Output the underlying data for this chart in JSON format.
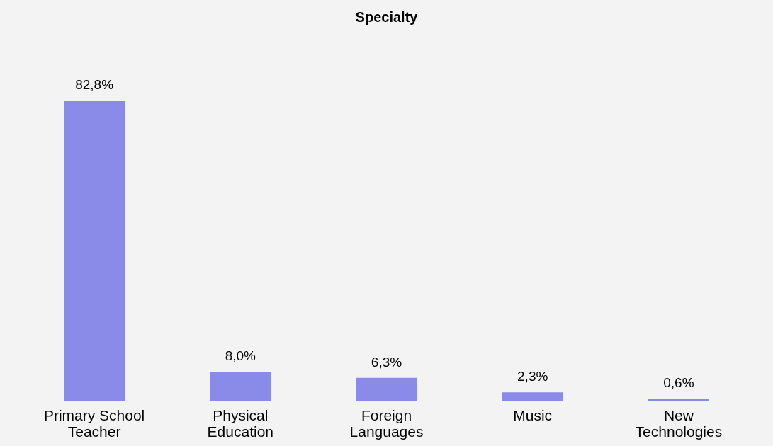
{
  "chart_data": {
    "type": "bar",
    "title": "Specialty",
    "categories": [
      "Primary School Teacher",
      "Physical Education",
      "Foreign Languages",
      "Music",
      "New Technologies"
    ],
    "values": [
      82.8,
      8.0,
      6.3,
      2.3,
      0.6
    ],
    "value_labels": [
      "82,8%",
      "8,0%",
      "6,3%",
      "2,3%",
      "0,6%"
    ],
    "color": "#8a8ae8"
  }
}
